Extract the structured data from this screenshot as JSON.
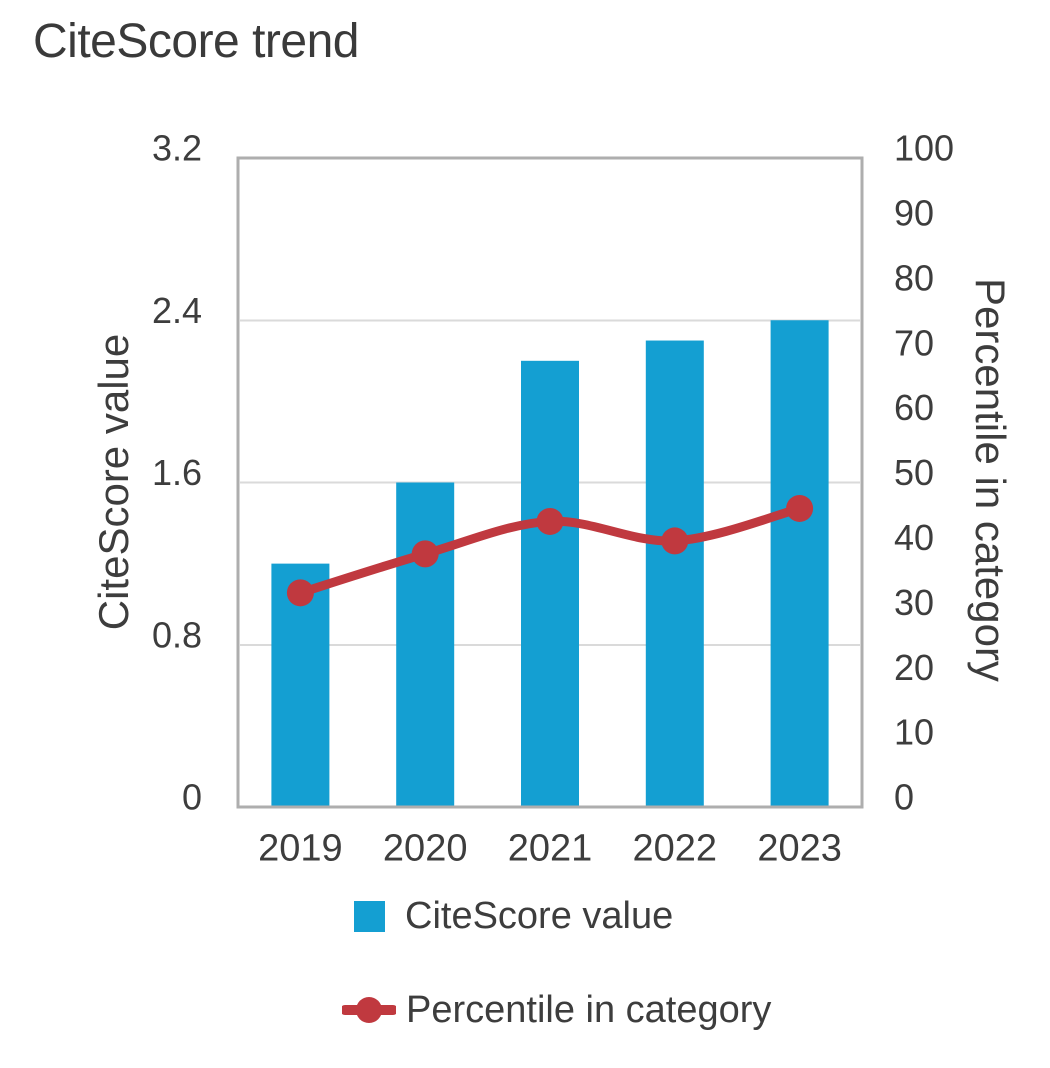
{
  "page": {
    "title": "CiteScore trend"
  },
  "chart_data": {
    "type": "bar",
    "combo": "bar + line, dual y-axes",
    "title": "CiteScore trend",
    "categories": [
      "2019",
      "2020",
      "2021",
      "2022",
      "2023"
    ],
    "series": [
      {
        "name": "CiteScore value",
        "type": "bar",
        "axis": "left",
        "values": [
          1.2,
          1.6,
          2.2,
          2.3,
          2.4
        ]
      },
      {
        "name": "Percentile in category",
        "type": "line",
        "axis": "right",
        "values": [
          33,
          39,
          44,
          41,
          46
        ]
      }
    ],
    "left_axis": {
      "label": "CiteScore value",
      "min": 0,
      "max": 3.2,
      "ticks": [
        "3.2",
        "2.4",
        "1.6",
        "0.8",
        "0"
      ]
    },
    "right_axis": {
      "label": "Percentile in category",
      "min": 0,
      "max": 100,
      "ticks": [
        "100",
        "90",
        "80",
        "70",
        "60",
        "50",
        "40",
        "30",
        "20",
        "10",
        "0"
      ]
    },
    "grid": "horizontal gridlines at left-axis ticks only",
    "legend_position": "bottom"
  },
  "colors": {
    "bar": "#149fd2",
    "line": "#c0393f",
    "grid": "#dadada",
    "frame": "#aeaeae",
    "text": "#3d3d3d"
  }
}
